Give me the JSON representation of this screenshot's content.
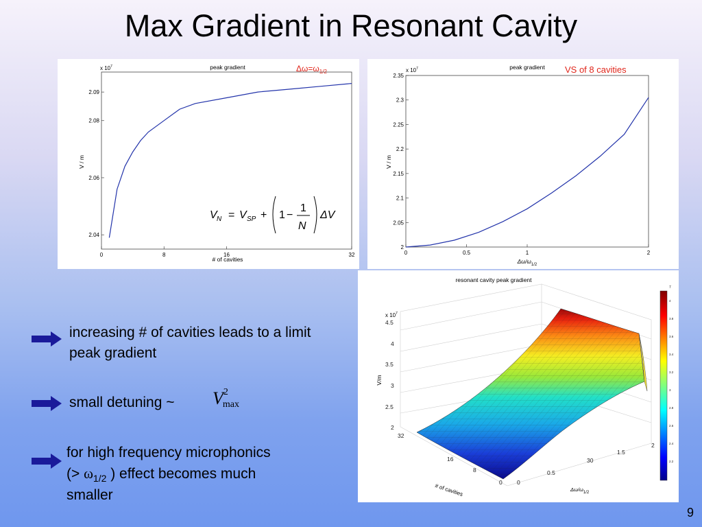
{
  "slide": {
    "title": "Max Gradient in Resonant Cavity",
    "page_number": "9"
  },
  "bullets": [
    {
      "text": "increasing # of cavities leads to a limit peak gradient"
    },
    {
      "text_before": "small detuning  ~ ",
      "formula": "V",
      "formula_sup": "2",
      "formula_sub": "max"
    },
    {
      "line1": "for high frequency microphonics",
      "line2_before": "(> ",
      "omega": "ω",
      "omega_sub": "1/2",
      "line2_after": " ) effect becomes much",
      "line3": "smaller"
    }
  ],
  "colors": {
    "arrow": "#1a1a9a",
    "curve": "#2233aa",
    "red_label": "#e0261b"
  },
  "chart_data": [
    {
      "type": "line",
      "title": "peak gradient",
      "annotation": "Δω=ω",
      "annotation_sub": "1/2",
      "xlabel": "# of cavities",
      "ylabel": "V / m",
      "y_multiplier": "x 10",
      "y_multiplier_exp": "7",
      "xlim": [
        0,
        32
      ],
      "ylim": [
        20.35,
        20.97
      ],
      "x_ticks": [
        0,
        8,
        16,
        32
      ],
      "y_ticks": [
        20.4,
        20.6,
        20.8,
        20.9
      ],
      "y_tick_labels": [
        "2.04",
        "2.06",
        "2.08",
        "2.09"
      ],
      "formula": {
        "lhs": "V",
        "lhs_sub": "N",
        "eq": "=",
        "v": "V",
        "v_sub": "SP",
        "plus": "+",
        "one": "1",
        "minus": "−",
        "num": "1",
        "den": "N",
        "delta": "ΔV"
      },
      "series": [
        {
          "x": [
            1,
            2,
            3,
            4,
            5,
            6,
            8,
            10,
            12,
            16,
            20,
            24,
            28,
            32
          ],
          "y": [
            20.39,
            20.56,
            20.64,
            20.69,
            20.73,
            20.76,
            20.8,
            20.84,
            20.86,
            20.88,
            20.9,
            20.91,
            20.92,
            20.93
          ]
        }
      ]
    },
    {
      "type": "line",
      "title": "peak gradient",
      "annotation": "VS of 8 cavities",
      "xlabel": "Δω/ω",
      "xlabel_sub": "1/2",
      "ylabel": "V / m",
      "y_multiplier": "x 10",
      "y_multiplier_exp": "7",
      "xlim": [
        0,
        2
      ],
      "ylim": [
        2.0,
        2.35
      ],
      "x_ticks": [
        0,
        0.5,
        1,
        2
      ],
      "y_ticks": [
        2,
        2.05,
        2.1,
        2.15,
        2.2,
        2.25,
        2.3,
        2.35
      ],
      "y_tick_labels": [
        "2",
        "2.05",
        "2.1",
        "2.15",
        "2.2",
        "2.25",
        "2.3",
        "2.35"
      ],
      "series": [
        {
          "x": [
            0,
            0.2,
            0.4,
            0.6,
            0.8,
            1.0,
            1.2,
            1.4,
            1.6,
            1.8,
            2.0
          ],
          "y": [
            2.0,
            2.004,
            2.014,
            2.03,
            2.052,
            2.078,
            2.11,
            2.145,
            2.185,
            2.23,
            2.305
          ]
        }
      ]
    },
    {
      "type": "surface",
      "title": "resonant cavity peak gradient",
      "xlabel": "Δω/ω",
      "xlabel_sub": "1/2",
      "ylabel": "# of cavities",
      "zlabel": "V/m",
      "z_multiplier": "x 10",
      "z_multiplier_exp": "7",
      "z_ticks": [
        "2",
        "2.5",
        "3",
        "3.5",
        "4",
        "4.5"
      ],
      "x_ticks": [
        "0",
        "0.5",
        "1",
        "1.5",
        "2"
      ],
      "y_ticks": [
        "0",
        "8",
        "16",
        "32"
      ],
      "extra_tick": "30",
      "colorbar_exp": "7",
      "colorbar_ticks": [
        "4",
        "3.8",
        "3.6",
        "3.4",
        "3.2",
        "3",
        "2.8",
        "2.6",
        "2.4",
        "2.2"
      ]
    }
  ]
}
